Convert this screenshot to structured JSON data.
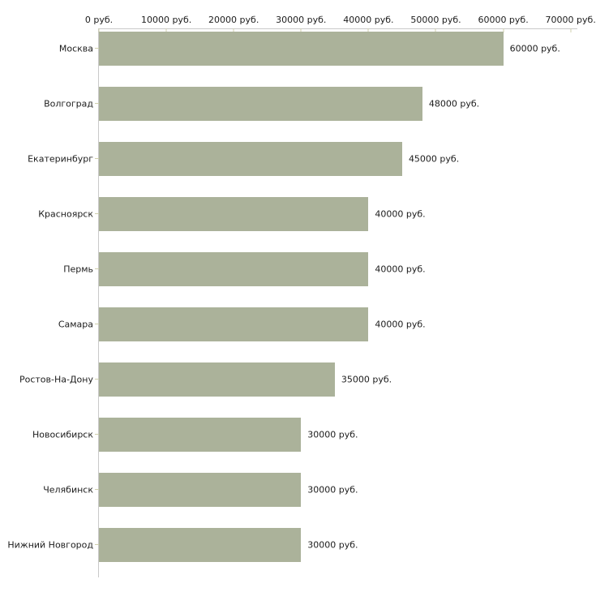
{
  "chart_data": {
    "type": "bar",
    "orientation": "horizontal",
    "title": "",
    "xlabel": "",
    "ylabel": "",
    "xlim": [
      0,
      71000
    ],
    "grid": false,
    "legend": "none",
    "categories": [
      "Москва",
      "Волгоград",
      "Екатеринбург",
      "Красноярск",
      "Пермь",
      "Самара",
      "Ростов-На-Дону",
      "Новосибирск",
      "Челябинск",
      "Нижний Новгород"
    ],
    "values": [
      60000,
      48000,
      45000,
      40000,
      40000,
      40000,
      35000,
      30000,
      30000,
      30000
    ],
    "value_labels": [
      "60000 руб.",
      "48000 руб.",
      "45000 руб.",
      "40000 руб.",
      "40000 руб.",
      "40000 руб.",
      "35000 руб.",
      "30000 руб.",
      "30000 руб.",
      "30000 руб."
    ],
    "x_ticks": [
      {
        "value": 0,
        "label": "0 руб."
      },
      {
        "value": 10000,
        "label": "10000 руб."
      },
      {
        "value": 20000,
        "label": "20000 руб."
      },
      {
        "value": 30000,
        "label": "30000 руб."
      },
      {
        "value": 40000,
        "label": "40000 руб."
      },
      {
        "value": 50000,
        "label": "50000 руб."
      },
      {
        "value": 60000,
        "label": "60000 руб."
      },
      {
        "value": 70000,
        "label": "70000 руб."
      }
    ],
    "colors": {
      "bar": "#abb29a",
      "axis": "#c9c9c9",
      "tick": "#cfcfad",
      "text": "#1c1c1c",
      "background": "#ffffff"
    }
  }
}
